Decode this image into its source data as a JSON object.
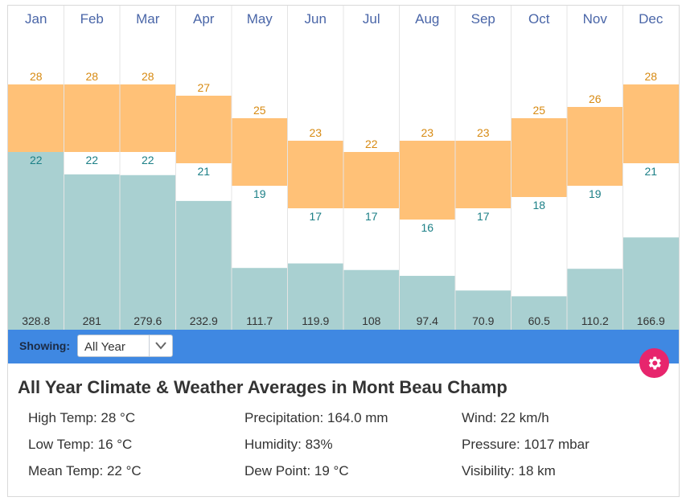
{
  "chart_data": {
    "type": "bar",
    "title": "All Year Climate & Weather Averages in Mont Beau Champ",
    "categories": [
      "Jan",
      "Feb",
      "Mar",
      "Apr",
      "May",
      "Jun",
      "Jul",
      "Aug",
      "Sep",
      "Oct",
      "Nov",
      "Dec"
    ],
    "series": [
      {
        "name": "High Temp (°C)",
        "values": [
          28,
          28,
          28,
          27,
          25,
          23,
          22,
          23,
          23,
          25,
          26,
          28
        ]
      },
      {
        "name": "Low Temp (°C)",
        "values": [
          22,
          22,
          22,
          21,
          19,
          17,
          17,
          16,
          17,
          18,
          19,
          21
        ]
      },
      {
        "name": "Precipitation (mm)",
        "values": [
          328.8,
          281,
          279.6,
          232.9,
          111.7,
          119.9,
          108,
          97.4,
          70.9,
          60.5,
          110.2,
          166.9
        ]
      }
    ],
    "temp_range": [
      11,
      34
    ],
    "rain_range": [
      0,
      480
    ]
  },
  "toolbar": {
    "showing_label": "Showing:",
    "selected": "All Year"
  },
  "summary": {
    "title": "All Year Climate & Weather Averages in Mont Beau Champ",
    "high_temp": "High Temp: 28 °C",
    "low_temp": "Low Temp: 16 °C",
    "mean_temp": "Mean Temp: 22 °C",
    "precipitation": "Precipitation: 164.0 mm",
    "humidity": "Humidity: 83%",
    "dew_point": "Dew Point: 19 °C",
    "wind": "Wind: 22 km/h",
    "pressure": "Pressure: 1017 mbar",
    "visibility": "Visibility: 18 km"
  },
  "icons": {
    "settings": "gear-icon",
    "dropdown": "chevron-down-icon"
  },
  "colors": {
    "temp_bar": "#ffc177",
    "rain_bar": "#a9d0d1",
    "toolbar": "#3f88e2",
    "settings_button": "#e7256d"
  }
}
